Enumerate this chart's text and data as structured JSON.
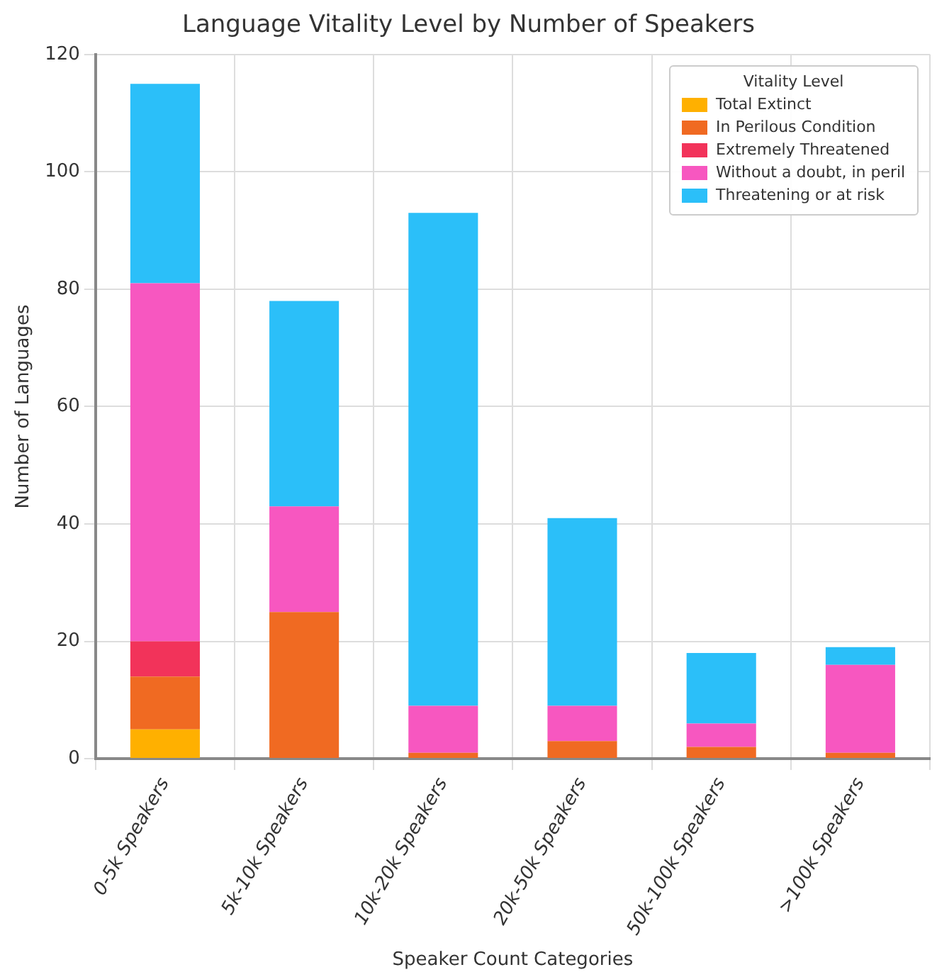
{
  "chart_data": {
    "type": "bar",
    "title": "Language Vitality Level by Number of Speakers",
    "xlabel": "Speaker Count Categories",
    "ylabel": "Number of Languages",
    "legend_title": "Vitality Level",
    "categories": [
      "0-5k Speakers",
      "5k-10k Speakers",
      "10k-20k Speakers",
      "20k-50k Speakers",
      "50k-100k Speakers",
      ">100k Speakers"
    ],
    "series": [
      {
        "name": "Total Extinct",
        "color": "#ffb000",
        "values": [
          5,
          0,
          0,
          0,
          0,
          0
        ]
      },
      {
        "name": "In Perilous Condition",
        "color": "#f06a22",
        "values": [
          9,
          25,
          1,
          3,
          2,
          1
        ]
      },
      {
        "name": "Extremely Threatened",
        "color": "#f2335a",
        "values": [
          6,
          0,
          0,
          0,
          0,
          0
        ]
      },
      {
        "name": "Without a doubt, in peril",
        "color": "#f757c0",
        "values": [
          61,
          18,
          8,
          6,
          4,
          15
        ]
      },
      {
        "name": "Threatening or at risk",
        "color": "#2bbff9",
        "values": [
          34,
          35,
          84,
          32,
          12,
          3
        ]
      }
    ],
    "stacked": true,
    "ylim": [
      0,
      120
    ],
    "yticks": [
      0,
      20,
      40,
      60,
      80,
      100,
      120
    ],
    "grid": true,
    "legend": "top right"
  }
}
